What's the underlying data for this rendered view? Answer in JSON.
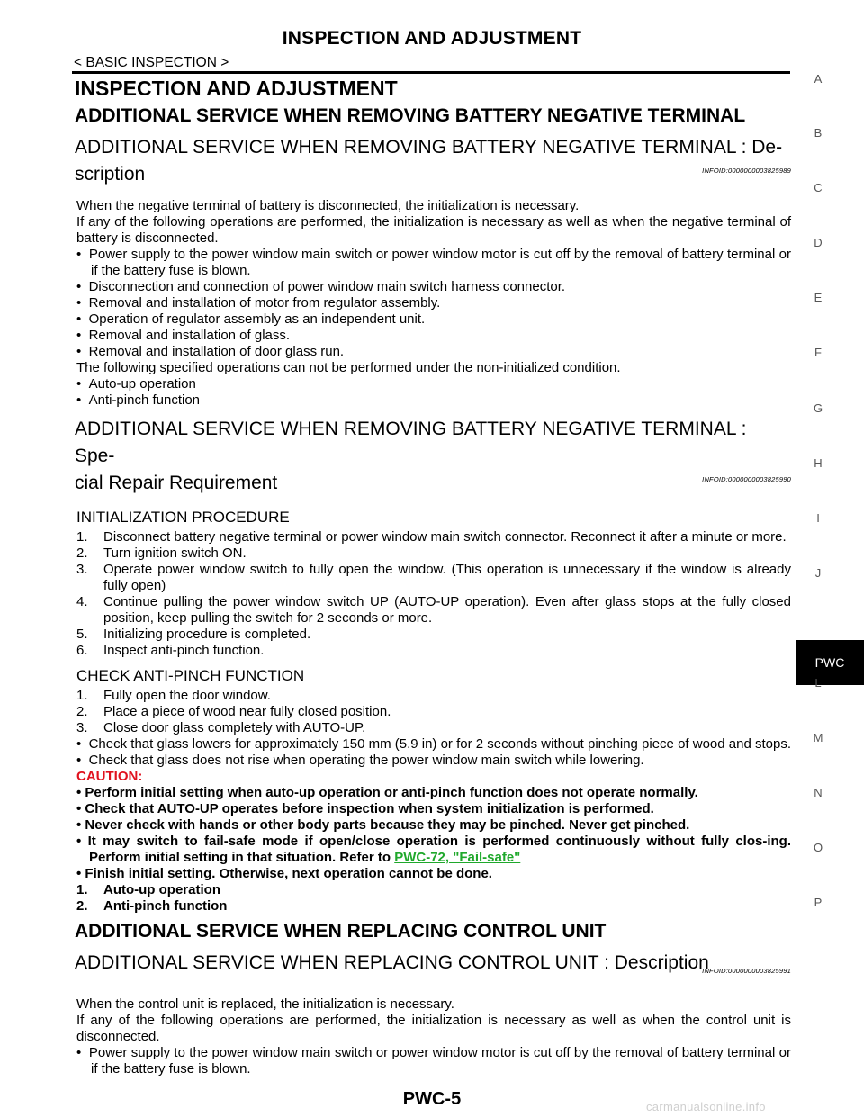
{
  "header": {
    "title": "INSPECTION AND ADJUSTMENT",
    "section": "< BASIC INSPECTION >"
  },
  "main": {
    "h1": "INSPECTION AND ADJUSTMENT",
    "h2_battery": "ADDITIONAL SERVICE WHEN REMOVING BATTERY NEGATIVE TERMINAL",
    "desc": {
      "title": "ADDITIONAL SERVICE WHEN REMOVING BATTERY NEGATIVE TERMINAL : De-scription",
      "title_line1": "ADDITIONAL SERVICE WHEN REMOVING BATTERY NEGATIVE TERMINAL : De-",
      "title_line2": "scription",
      "infoid": "INFOID:0000000003825989",
      "p1": "When the negative terminal of battery is disconnected, the initialization is necessary.",
      "p2": "If any of the following operations are performed, the initialization is necessary as well as when the negative terminal of battery is disconnected.",
      "bullets": [
        "Power supply to the power window main switch or power window motor is cut off by the removal of battery terminal or if the battery fuse is blown.",
        "Disconnection and connection of power window main switch harness connector.",
        "Removal and installation of motor from regulator assembly.",
        "Operation of regulator assembly as an independent unit.",
        "Removal and installation of glass.",
        "Removal and installation of door glass run."
      ],
      "p3": "The following specified operations can not be performed under the non-initialized condition.",
      "bullets2": [
        "Auto-up operation",
        "Anti-pinch function"
      ]
    },
    "special": {
      "title_line1": "ADDITIONAL SERVICE WHEN REMOVING BATTERY NEGATIVE TERMINAL : Spe-",
      "title_line2": "cial Repair Requirement",
      "infoid": "INFOID:0000000003825990",
      "init_heading": "INITIALIZATION PROCEDURE",
      "init_steps": [
        "1.|Disconnect battery negative terminal or power window main switch connector. Reconnect it after a minute or more.",
        "2.|Turn ignition switch ON.",
        "3.|Operate power window switch to fully open the window. (This operation is unnecessary if the window is already fully open)",
        "4.|Continue pulling the power window switch UP (AUTO-UP operation). Even after glass stops at the fully closed position, keep pulling the switch for 2 seconds or more.",
        "5.|Initializing procedure is completed.",
        "6.|Inspect anti-pinch function."
      ],
      "check_heading": "CHECK ANTI-PINCH FUNCTION",
      "check_steps": [
        "1.|Fully open the door window.",
        "2.|Place a piece of wood near fully closed position.",
        "3.|Close door glass completely with AUTO-UP."
      ],
      "check_bullets": [
        "Check that glass lowers for approximately 150 mm (5.9 in) or for 2 seconds without pinching piece of wood and stops.",
        "Check that glass does not rise when operating the power window main switch while lowering."
      ],
      "caution_label": "CAUTION:",
      "caution_items": [
        "Perform initial setting when auto-up operation or anti-pinch function does not operate normally.",
        "Check that AUTO-UP operates before inspection when system initialization is performed.",
        "Never check with hands or other body parts because they may be pinched. Never get pinched."
      ],
      "caution_failsafe_text": "It may switch to fail-safe mode if open/close operation is performed continuously without fully clos-ing. Perform initial setting in that situation. Refer to",
      "caution_failsafe_link": "PWC-72, \"Fail-safe\"",
      "caution_last": "Finish initial setting. Otherwise, next operation cannot be done.",
      "caution_numbered": [
        "1.|Auto-up operation",
        "2.|Anti-pinch function"
      ]
    },
    "h2_control": "ADDITIONAL SERVICE WHEN REPLACING CONTROL UNIT",
    "control": {
      "title": "ADDITIONAL SERVICE WHEN REPLACING CONTROL UNIT : Description",
      "infoid": "INFOID:0000000003825991",
      "p1": "When the control unit is replaced, the initialization is necessary.",
      "p2": "If any of the following operations are performed, the initialization is necessary as well as when the control unit is disconnected.",
      "bullet": "Power supply to the power window main switch or power window motor is cut off by the removal of battery terminal or if the battery fuse is blown."
    }
  },
  "side_index": [
    "A",
    "B",
    "C",
    "D",
    "E",
    "F",
    "G",
    "H",
    "I",
    "J",
    "L",
    "M",
    "N",
    "O",
    "P"
  ],
  "side_tab": "PWC",
  "footer": {
    "page": "PWC-5",
    "watermark": "carmanualsonline.info"
  },
  "colors": {
    "caution": "#e0121e",
    "link": "#1fa82b",
    "tab_bg": "#000000"
  }
}
